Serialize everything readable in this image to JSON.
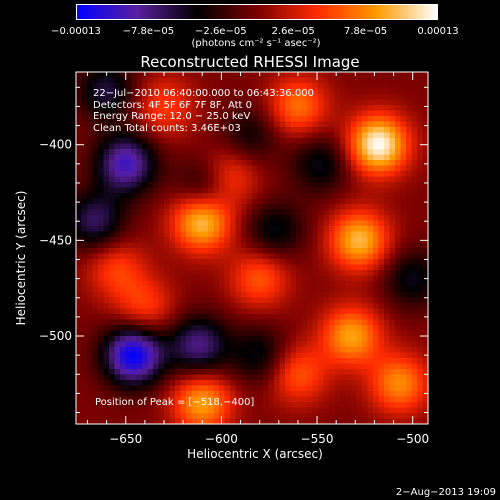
{
  "chart_data": {
    "type": "heatmap",
    "title": "Reconstructed RHESSI Image",
    "xlabel": "Heliocentric X (arcsec)",
    "ylabel": "Heliocentric Y (arcsec)",
    "xlim": [
      -676,
      -492
    ],
    "ylim": [
      -546,
      -362
    ],
    "xticks": [
      -650,
      -600,
      -550,
      -500
    ],
    "xtick_labels": [
      "−650",
      "−600",
      "−550",
      "−500"
    ],
    "yticks": [
      -400,
      -450,
      -500
    ],
    "ytick_labels": [
      "−400",
      "−450",
      "−500"
    ],
    "colorbar": {
      "ticks": [
        -0.00013,
        -7.8e-05,
        -2.6e-05,
        2.6e-05,
        7.8e-05,
        0.00013
      ],
      "tick_labels": [
        "−0.00013",
        "−7.8e−05",
        "−2.6e−05",
        "2.6e−05",
        "7.8e−05",
        "0.00013"
      ],
      "unit_label": "(photons cm⁻² s⁻¹ asec⁻²)",
      "range": [
        -0.00013,
        0.00013
      ],
      "colors": [
        "#0000ff",
        "#5a1f9e",
        "#000000",
        "#7a0000",
        "#ff2a00",
        "#ff9a00",
        "#ffffff"
      ]
    },
    "sources": [
      {
        "x": -610,
        "y": -440,
        "value": 0.00011
      },
      {
        "x": -598,
        "y": -418,
        "value": 8e-05
      },
      {
        "x": -518,
        "y": -400,
        "value": 0.00013
      },
      {
        "x": -528,
        "y": -450,
        "value": 0.0001
      },
      {
        "x": -532,
        "y": -500,
        "value": 9e-05
      },
      {
        "x": -507,
        "y": -525,
        "value": 8e-05
      },
      {
        "x": -560,
        "y": -380,
        "value": 7e-05
      },
      {
        "x": -610,
        "y": -535,
        "value": 9e-05
      },
      {
        "x": -580,
        "y": -470,
        "value": 6e-05
      },
      {
        "x": -655,
        "y": -465,
        "value": 5e-05
      },
      {
        "x": -630,
        "y": -380,
        "value": 5e-05
      },
      {
        "x": -560,
        "y": -520,
        "value": 6e-05
      },
      {
        "x": -640,
        "y": -485,
        "value": 5e-05
      },
      {
        "x": -650,
        "y": -410,
        "value": -0.0001
      },
      {
        "x": -646,
        "y": -510,
        "value": -0.00013
      },
      {
        "x": -606,
        "y": -422,
        "value": -8e-05
      },
      {
        "x": -666,
        "y": -440,
        "value": -7e-05
      },
      {
        "x": -612,
        "y": -505,
        "value": -8e-05
      },
      {
        "x": -572,
        "y": -445,
        "value": -5e-05
      },
      {
        "x": -660,
        "y": -372,
        "value": -6e-05
      },
      {
        "x": -580,
        "y": -510,
        "value": -5e-05
      },
      {
        "x": -548,
        "y": -410,
        "value": -5e-05
      },
      {
        "x": -500,
        "y": -470,
        "value": -5e-05
      },
      {
        "x": -585,
        "y": -395,
        "value": -4e-05
      }
    ]
  },
  "annotations": {
    "time_range": "22−Jul−2010 06:40:00.000 to 06:43:36.000",
    "detectors": "Detectors: 4F 5F 6F 7F 8F, Att 0",
    "energy": "Energy Range: 12.0 − 25.0 keV",
    "clean": "Clean     Total counts: 3.46E+03",
    "peak": "Position of Peak = [−518,−400]"
  },
  "footer": {
    "timestamp": "2−Aug−2013 19:09"
  }
}
